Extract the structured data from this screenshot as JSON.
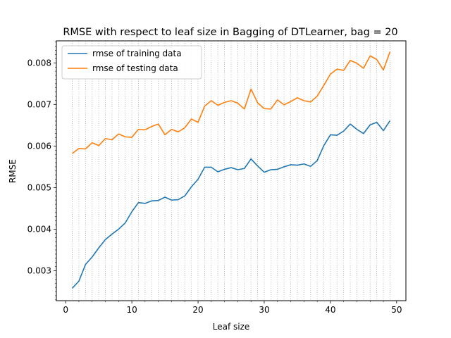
{
  "chart_data": {
    "type": "line",
    "title": "RMSE with respect to leaf size in Bagging of DTLearner, bag = 20",
    "xlabel": "Leaf size",
    "ylabel": "RMSE",
    "xlim": [
      -1.4,
      51.4
    ],
    "ylim": [
      0.00228,
      0.00853
    ],
    "xticks": [
      0,
      10,
      20,
      30,
      40,
      50
    ],
    "xtick_labels": [
      "0",
      "10",
      "20",
      "30",
      "40",
      "50"
    ],
    "yticks": [
      0.003,
      0.004,
      0.005,
      0.006,
      0.007,
      0.008
    ],
    "ytick_labels": [
      "0.003",
      "0.004",
      "0.005",
      "0.006",
      "0.007",
      "0.008"
    ],
    "grid": "vertical dotted lines at every integer leaf size",
    "legend_position": "top-left",
    "x": [
      1,
      2,
      3,
      4,
      5,
      6,
      7,
      8,
      9,
      10,
      11,
      12,
      13,
      14,
      15,
      16,
      17,
      18,
      19,
      20,
      21,
      22,
      23,
      24,
      25,
      26,
      27,
      28,
      29,
      30,
      31,
      32,
      33,
      34,
      35,
      36,
      37,
      38,
      39,
      40,
      41,
      42,
      43,
      44,
      45,
      46,
      47,
      48,
      49
    ],
    "series": [
      {
        "name": "rmse of training data",
        "color": "#1f77b4",
        "values": [
          0.00258,
          0.00275,
          0.00315,
          0.00333,
          0.00355,
          0.00375,
          0.00388,
          0.004,
          0.00415,
          0.00442,
          0.00464,
          0.00462,
          0.00468,
          0.00469,
          0.00477,
          0.0047,
          0.00471,
          0.0048,
          0.00502,
          0.0052,
          0.00549,
          0.00549,
          0.00538,
          0.00544,
          0.00548,
          0.00543,
          0.00546,
          0.00569,
          0.00552,
          0.00537,
          0.00543,
          0.00544,
          0.0055,
          0.00555,
          0.00554,
          0.00557,
          0.00551,
          0.00565,
          0.00601,
          0.00627,
          0.00626,
          0.00636,
          0.00653,
          0.0064,
          0.0063,
          0.00651,
          0.00657,
          0.00637,
          0.00661
        ]
      },
      {
        "name": "rmse of testing data",
        "color": "#ff7f0e",
        "values": [
          0.00582,
          0.00594,
          0.00593,
          0.00608,
          0.00601,
          0.00618,
          0.00615,
          0.00629,
          0.00622,
          0.00621,
          0.0064,
          0.00639,
          0.00647,
          0.00653,
          0.00627,
          0.0064,
          0.00634,
          0.00644,
          0.00665,
          0.00657,
          0.00696,
          0.00709,
          0.00698,
          0.00705,
          0.00709,
          0.00703,
          0.00689,
          0.00737,
          0.00704,
          0.0069,
          0.00689,
          0.00711,
          0.00699,
          0.00707,
          0.00716,
          0.00709,
          0.00706,
          0.0072,
          0.00746,
          0.00773,
          0.00785,
          0.00782,
          0.00806,
          0.00799,
          0.00787,
          0.00817,
          0.00808,
          0.00783,
          0.00827
        ]
      }
    ]
  }
}
